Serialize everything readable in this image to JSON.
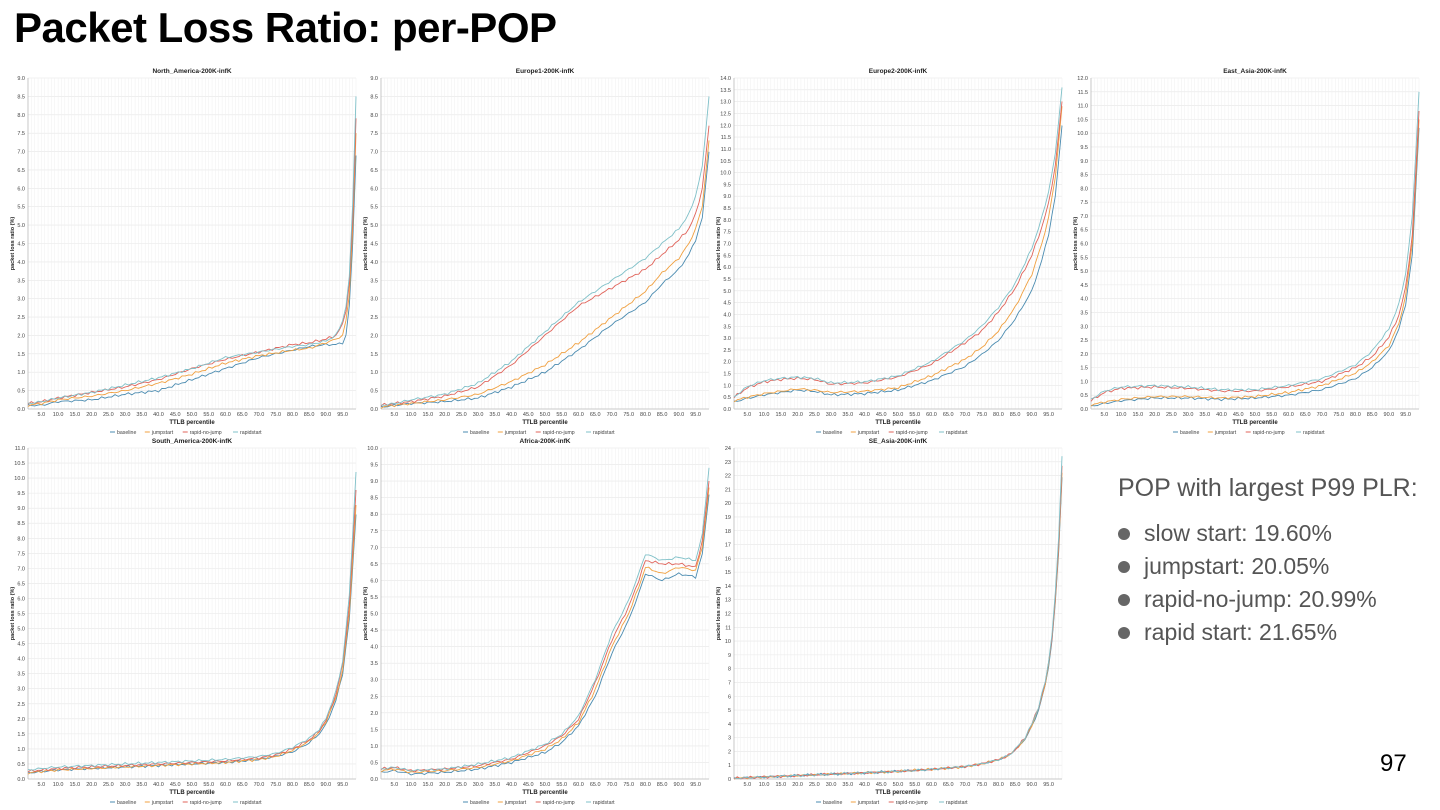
{
  "slide": {
    "title": "Packet Loss Ratio: per-POP",
    "page_number": "97"
  },
  "summary": {
    "heading": "POP with largest P99 PLR:",
    "items": [
      {
        "label": "slow start: 19.60%"
      },
      {
        "label": "jumpstart: 20.05%"
      },
      {
        "label": "rapid-no-jump: 20.99%"
      },
      {
        "label": "rapid start: 21.65%"
      }
    ]
  },
  "colors": {
    "baseline": "#4a8bb0",
    "jumpstart": "#f0a040",
    "rapid-no-jump": "#e0635a",
    "rapidstart": "#7fc0c8"
  },
  "chart_data": [
    {
      "type": "line",
      "title": "North_America-200K-infK",
      "xlabel": "TTLB percentile",
      "ylabel": "packet loss ratio (%)",
      "ylim": [
        0,
        9
      ],
      "ytick_step": 0.5,
      "xlim": [
        1,
        99
      ],
      "grid": true,
      "legend": "bottom",
      "x": [
        1,
        5,
        10,
        20,
        30,
        40,
        50,
        60,
        70,
        80,
        85,
        90,
        93,
        95,
        96,
        97,
        98,
        99
      ],
      "series": [
        {
          "name": "baseline",
          "values": [
            0.1,
            0.1,
            0.2,
            0.25,
            0.4,
            0.5,
            0.8,
            1.1,
            1.4,
            1.6,
            1.7,
            1.75,
            1.75,
            1.8,
            2.0,
            2.8,
            4.5,
            6.9
          ]
        },
        {
          "name": "jumpstart",
          "values": [
            0.1,
            0.15,
            0.25,
            0.35,
            0.5,
            0.7,
            0.95,
            1.25,
            1.45,
            1.6,
            1.65,
            1.8,
            1.9,
            2.0,
            2.4,
            3.1,
            4.9,
            7.5
          ]
        },
        {
          "name": "rapid-no-jump",
          "values": [
            0.15,
            0.2,
            0.3,
            0.45,
            0.6,
            0.8,
            1.1,
            1.35,
            1.55,
            1.75,
            1.8,
            1.9,
            2.0,
            2.3,
            2.7,
            3.4,
            5.2,
            7.9
          ]
        },
        {
          "name": "rapidstart",
          "values": [
            0.15,
            0.2,
            0.3,
            0.45,
            0.65,
            0.85,
            1.1,
            1.4,
            1.55,
            1.7,
            1.75,
            1.85,
            2.0,
            2.4,
            2.8,
            3.6,
            5.6,
            8.5
          ]
        }
      ]
    },
    {
      "type": "line",
      "title": "Europe1-200K-infK",
      "xlabel": "TTLB percentile",
      "ylabel": "packet loss ratio (%)",
      "ylim": [
        0,
        9
      ],
      "ytick_step": 0.5,
      "xlim": [
        1,
        99
      ],
      "grid": true,
      "legend": "bottom",
      "x": [
        1,
        5,
        10,
        20,
        30,
        40,
        50,
        60,
        70,
        80,
        85,
        90,
        93,
        95,
        97,
        99
      ],
      "series": [
        {
          "name": "baseline",
          "values": [
            0.05,
            0.1,
            0.15,
            0.2,
            0.3,
            0.6,
            1.0,
            1.6,
            2.3,
            2.9,
            3.4,
            3.8,
            4.2,
            4.6,
            5.2,
            7.0
          ]
        },
        {
          "name": "jumpstart",
          "values": [
            0.05,
            0.1,
            0.15,
            0.25,
            0.4,
            0.75,
            1.2,
            1.8,
            2.5,
            3.2,
            3.7,
            4.1,
            4.5,
            4.9,
            5.5,
            7.3
          ]
        },
        {
          "name": "rapid-no-jump",
          "values": [
            0.1,
            0.15,
            0.2,
            0.35,
            0.6,
            1.2,
            2.0,
            2.8,
            3.3,
            3.8,
            4.2,
            4.6,
            4.9,
            5.3,
            6.0,
            7.7
          ]
        },
        {
          "name": "rapidstart",
          "values": [
            0.1,
            0.15,
            0.25,
            0.4,
            0.7,
            1.3,
            2.1,
            2.9,
            3.5,
            4.1,
            4.5,
            4.9,
            5.3,
            5.8,
            6.6,
            8.5
          ]
        }
      ]
    },
    {
      "type": "line",
      "title": "Europe2-200K-infK",
      "xlabel": "TTLB percentile",
      "ylabel": "packet loss ratio (%)",
      "ylim": [
        0,
        14
      ],
      "ytick_step": 0.5,
      "xlim": [
        1,
        99
      ],
      "grid": true,
      "legend": "bottom",
      "x": [
        1,
        5,
        10,
        15,
        20,
        25,
        30,
        40,
        50,
        60,
        70,
        75,
        80,
        85,
        90,
        93,
        95,
        97,
        99
      ],
      "series": [
        {
          "name": "baseline",
          "values": [
            0.3,
            0.45,
            0.6,
            0.7,
            0.8,
            0.75,
            0.6,
            0.65,
            0.8,
            1.2,
            1.8,
            2.3,
            2.9,
            3.8,
            5.0,
            6.3,
            7.4,
            9.0,
            12.0
          ]
        },
        {
          "name": "jumpstart",
          "values": [
            0.35,
            0.5,
            0.65,
            0.75,
            0.85,
            0.8,
            0.7,
            0.75,
            0.9,
            1.4,
            2.1,
            2.6,
            3.3,
            4.3,
            5.7,
            7.0,
            8.1,
            9.8,
            12.8
          ]
        },
        {
          "name": "rapid-no-jump",
          "values": [
            0.5,
            0.9,
            1.15,
            1.25,
            1.3,
            1.25,
            1.05,
            1.1,
            1.35,
            1.9,
            2.8,
            3.3,
            4.1,
            5.1,
            6.5,
            7.7,
            8.7,
            10.3,
            13.0
          ]
        },
        {
          "name": "rapidstart",
          "values": [
            0.5,
            0.95,
            1.2,
            1.3,
            1.35,
            1.3,
            1.1,
            1.15,
            1.4,
            2.0,
            2.9,
            3.5,
            4.3,
            5.3,
            6.8,
            8.1,
            9.2,
            10.8,
            13.6
          ]
        }
      ]
    },
    {
      "type": "line",
      "title": "East_Asia-200K-infK",
      "xlabel": "TTLB percentile",
      "ylabel": "packet loss ratio (%)",
      "ylim": [
        0,
        12
      ],
      "ytick_step": 0.5,
      "xlim": [
        1,
        99
      ],
      "grid": true,
      "legend": "bottom",
      "x": [
        1,
        5,
        10,
        20,
        30,
        40,
        50,
        60,
        70,
        80,
        85,
        90,
        93,
        95,
        97,
        99
      ],
      "series": [
        {
          "name": "baseline",
          "values": [
            0.1,
            0.2,
            0.3,
            0.4,
            0.4,
            0.35,
            0.4,
            0.5,
            0.7,
            1.1,
            1.5,
            2.1,
            2.9,
            3.8,
            5.6,
            10.2
          ]
        },
        {
          "name": "jumpstart",
          "values": [
            0.15,
            0.25,
            0.35,
            0.45,
            0.45,
            0.4,
            0.45,
            0.6,
            0.85,
            1.3,
            1.7,
            2.3,
            3.1,
            4.1,
            6.0,
            10.5
          ]
        },
        {
          "name": "rapid-no-jump",
          "values": [
            0.3,
            0.6,
            0.75,
            0.8,
            0.75,
            0.65,
            0.65,
            0.8,
            1.0,
            1.5,
            1.9,
            2.6,
            3.4,
            4.4,
            6.3,
            10.8
          ]
        },
        {
          "name": "rapidstart",
          "values": [
            0.35,
            0.65,
            0.8,
            0.85,
            0.8,
            0.7,
            0.7,
            0.85,
            1.1,
            1.6,
            2.1,
            2.9,
            3.8,
            4.9,
            7.0,
            11.5
          ]
        }
      ]
    },
    {
      "type": "line",
      "title": "South_America-200K-infK",
      "xlabel": "TTLB percentile",
      "ylabel": "packet loss ratio (%)",
      "ylim": [
        0,
        11
      ],
      "ytick_step": 0.5,
      "xlim": [
        1,
        99
      ],
      "grid": true,
      "legend": "bottom",
      "x": [
        1,
        5,
        10,
        20,
        30,
        40,
        50,
        60,
        70,
        75,
        80,
        85,
        88,
        90,
        93,
        95,
        97,
        99
      ],
      "series": [
        {
          "name": "baseline",
          "values": [
            0.2,
            0.25,
            0.3,
            0.35,
            0.4,
            0.45,
            0.5,
            0.55,
            0.65,
            0.75,
            0.9,
            1.2,
            1.5,
            1.8,
            2.6,
            3.5,
            5.3,
            8.8
          ]
        },
        {
          "name": "jumpstart",
          "values": [
            0.2,
            0.25,
            0.3,
            0.35,
            0.4,
            0.45,
            0.5,
            0.55,
            0.65,
            0.75,
            0.95,
            1.25,
            1.55,
            1.9,
            2.7,
            3.6,
            5.5,
            9.1
          ]
        },
        {
          "name": "rapid-no-jump",
          "values": [
            0.25,
            0.3,
            0.35,
            0.4,
            0.45,
            0.5,
            0.55,
            0.6,
            0.7,
            0.8,
            1.0,
            1.3,
            1.6,
            1.95,
            2.8,
            3.8,
            5.8,
            9.6
          ]
        },
        {
          "name": "rapidstart",
          "values": [
            0.3,
            0.35,
            0.4,
            0.45,
            0.5,
            0.55,
            0.6,
            0.65,
            0.75,
            0.85,
            1.05,
            1.35,
            1.65,
            2.0,
            2.9,
            3.9,
            6.1,
            10.2
          ]
        }
      ]
    },
    {
      "type": "line",
      "title": "Africa-200K-infK",
      "xlabel": "TTLB percentile",
      "ylabel": "packet loss ratio (%)",
      "ylim": [
        0,
        10
      ],
      "ytick_step": 0.5,
      "xlim": [
        1,
        99
      ],
      "grid": true,
      "legend": "bottom",
      "x": [
        1,
        5,
        10,
        20,
        30,
        40,
        50,
        55,
        60,
        65,
        70,
        75,
        78,
        80,
        85,
        90,
        95,
        97,
        99
      ],
      "series": [
        {
          "name": "baseline",
          "values": [
            0.2,
            0.25,
            0.15,
            0.2,
            0.3,
            0.5,
            0.8,
            1.1,
            1.6,
            2.5,
            3.8,
            4.8,
            5.6,
            6.2,
            6.0,
            6.2,
            6.1,
            6.8,
            8.6
          ]
        },
        {
          "name": "jumpstart",
          "values": [
            0.25,
            0.3,
            0.2,
            0.25,
            0.35,
            0.55,
            0.9,
            1.2,
            1.7,
            2.7,
            4.0,
            5.0,
            5.8,
            6.4,
            6.2,
            6.4,
            6.3,
            7.0,
            8.8
          ]
        },
        {
          "name": "rapid-no-jump",
          "values": [
            0.3,
            0.35,
            0.25,
            0.3,
            0.4,
            0.6,
            1.0,
            1.3,
            1.8,
            2.9,
            4.2,
            5.2,
            6.0,
            6.6,
            6.5,
            6.5,
            6.4,
            7.2,
            9.0
          ]
        },
        {
          "name": "rapidstart",
          "values": [
            0.3,
            0.35,
            0.25,
            0.3,
            0.45,
            0.65,
            1.05,
            1.35,
            1.9,
            3.0,
            4.4,
            5.4,
            6.2,
            6.8,
            6.6,
            6.7,
            6.6,
            7.4,
            9.4
          ]
        }
      ]
    },
    {
      "type": "line",
      "title": "SE_Asia-200K-infK",
      "xlabel": "TTLB percentile",
      "ylabel": "packet loss ratio (%)",
      "ylim": [
        0,
        24
      ],
      "ytick_step": 1,
      "xlim": [
        1,
        99
      ],
      "grid": true,
      "legend": "bottom",
      "x": [
        1,
        10,
        20,
        30,
        40,
        50,
        60,
        70,
        75,
        80,
        83,
        85,
        88,
        90,
        92,
        94,
        95,
        96,
        97,
        98,
        99
      ],
      "series": [
        {
          "name": "baseline",
          "values": [
            0.05,
            0.15,
            0.25,
            0.35,
            0.45,
            0.55,
            0.7,
            0.9,
            1.1,
            1.4,
            1.7,
            2.1,
            2.9,
            3.8,
            5.0,
            6.8,
            8.2,
            10.0,
            12.8,
            16.5,
            21.9
          ]
        },
        {
          "name": "jumpstart",
          "values": [
            0.05,
            0.15,
            0.25,
            0.35,
            0.45,
            0.55,
            0.7,
            0.9,
            1.1,
            1.4,
            1.7,
            2.1,
            2.9,
            3.9,
            5.1,
            6.9,
            8.3,
            10.2,
            13.0,
            16.8,
            22.2
          ]
        },
        {
          "name": "rapid-no-jump",
          "values": [
            0.05,
            0.15,
            0.25,
            0.35,
            0.45,
            0.55,
            0.7,
            0.9,
            1.1,
            1.4,
            1.7,
            2.1,
            3.0,
            4.0,
            5.2,
            7.0,
            8.4,
            10.3,
            13.2,
            17.1,
            22.7
          ]
        },
        {
          "name": "rapidstart",
          "values": [
            0.05,
            0.15,
            0.25,
            0.35,
            0.45,
            0.55,
            0.7,
            0.9,
            1.1,
            1.4,
            1.7,
            2.15,
            3.0,
            4.0,
            5.2,
            7.1,
            8.5,
            10.5,
            13.5,
            17.6,
            23.4
          ]
        }
      ]
    }
  ]
}
